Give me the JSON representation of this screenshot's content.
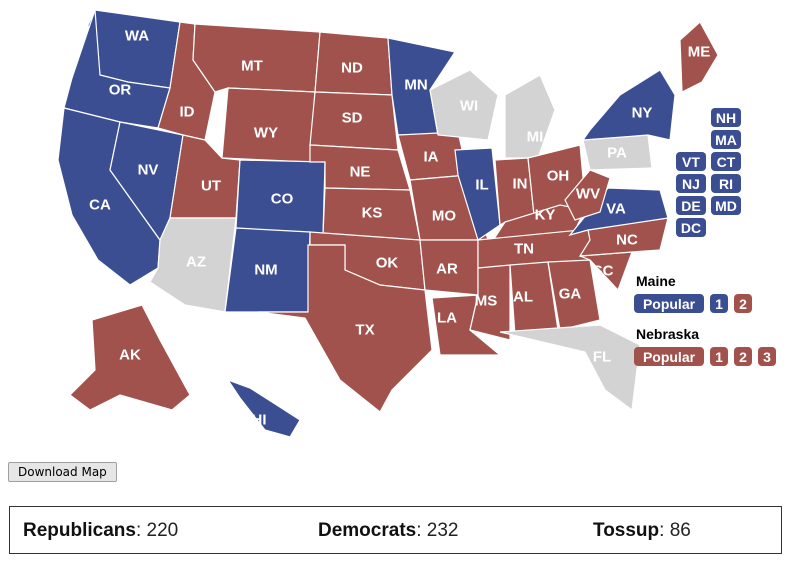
{
  "colors": {
    "rep": "#a2524c",
    "dem": "#3b4e91",
    "tossup": "#d3d3d3"
  },
  "states": [
    {
      "abbr": "WA",
      "party": "dem"
    },
    {
      "abbr": "OR",
      "party": "dem"
    },
    {
      "abbr": "CA",
      "party": "dem"
    },
    {
      "abbr": "NV",
      "party": "dem"
    },
    {
      "abbr": "ID",
      "party": "rep"
    },
    {
      "abbr": "MT",
      "party": "rep"
    },
    {
      "abbr": "WY",
      "party": "rep"
    },
    {
      "abbr": "UT",
      "party": "rep"
    },
    {
      "abbr": "AZ",
      "party": "tossup"
    },
    {
      "abbr": "CO",
      "party": "dem"
    },
    {
      "abbr": "NM",
      "party": "dem"
    },
    {
      "abbr": "ND",
      "party": "rep"
    },
    {
      "abbr": "SD",
      "party": "rep"
    },
    {
      "abbr": "NE",
      "party": "rep"
    },
    {
      "abbr": "KS",
      "party": "rep"
    },
    {
      "abbr": "OK",
      "party": "rep"
    },
    {
      "abbr": "TX",
      "party": "rep"
    },
    {
      "abbr": "MN",
      "party": "dem"
    },
    {
      "abbr": "IA",
      "party": "rep"
    },
    {
      "abbr": "MO",
      "party": "rep"
    },
    {
      "abbr": "AR",
      "party": "rep"
    },
    {
      "abbr": "LA",
      "party": "rep"
    },
    {
      "abbr": "WI",
      "party": "tossup"
    },
    {
      "abbr": "IL",
      "party": "dem"
    },
    {
      "abbr": "MI",
      "party": "tossup"
    },
    {
      "abbr": "IN",
      "party": "rep"
    },
    {
      "abbr": "OH",
      "party": "rep"
    },
    {
      "abbr": "KY",
      "party": "rep"
    },
    {
      "abbr": "TN",
      "party": "rep"
    },
    {
      "abbr": "MS",
      "party": "rep"
    },
    {
      "abbr": "AL",
      "party": "rep"
    },
    {
      "abbr": "GA",
      "party": "rep"
    },
    {
      "abbr": "FL",
      "party": "tossup"
    },
    {
      "abbr": "SC",
      "party": "rep"
    },
    {
      "abbr": "NC",
      "party": "rep"
    },
    {
      "abbr": "VA",
      "party": "dem"
    },
    {
      "abbr": "WV",
      "party": "rep"
    },
    {
      "abbr": "PA",
      "party": "tossup"
    },
    {
      "abbr": "NY",
      "party": "dem"
    },
    {
      "abbr": "ME",
      "party": "rep"
    },
    {
      "abbr": "AK",
      "party": "rep"
    },
    {
      "abbr": "HI",
      "party": "dem"
    }
  ],
  "small_states": [
    {
      "abbr": "NH",
      "party": "dem"
    },
    {
      "abbr": "MA",
      "party": "dem"
    },
    {
      "abbr": "VT",
      "party": "dem"
    },
    {
      "abbr": "CT",
      "party": "dem"
    },
    {
      "abbr": "NJ",
      "party": "dem"
    },
    {
      "abbr": "RI",
      "party": "dem"
    },
    {
      "abbr": "DE",
      "party": "dem"
    },
    {
      "abbr": "MD",
      "party": "dem"
    },
    {
      "abbr": "DC",
      "party": "dem"
    }
  ],
  "maine": {
    "title": "Maine",
    "popular": {
      "label": "Popular",
      "party": "dem"
    },
    "districts": [
      {
        "label": "1",
        "party": "dem"
      },
      {
        "label": "2",
        "party": "rep"
      }
    ]
  },
  "nebraska": {
    "title": "Nebraska",
    "popular": {
      "label": "Popular",
      "party": "rep"
    },
    "districts": [
      {
        "label": "1",
        "party": "rep"
      },
      {
        "label": "2",
        "party": "rep"
      },
      {
        "label": "3",
        "party": "rep"
      }
    ]
  },
  "download_label": "Download Map",
  "summary": {
    "rep_label": "Republicans",
    "rep_value": ": 220",
    "dem_label": "Democrats",
    "dem_value": ": 232",
    "tossup_label": "Tossup",
    "tossup_value": ": 86"
  }
}
